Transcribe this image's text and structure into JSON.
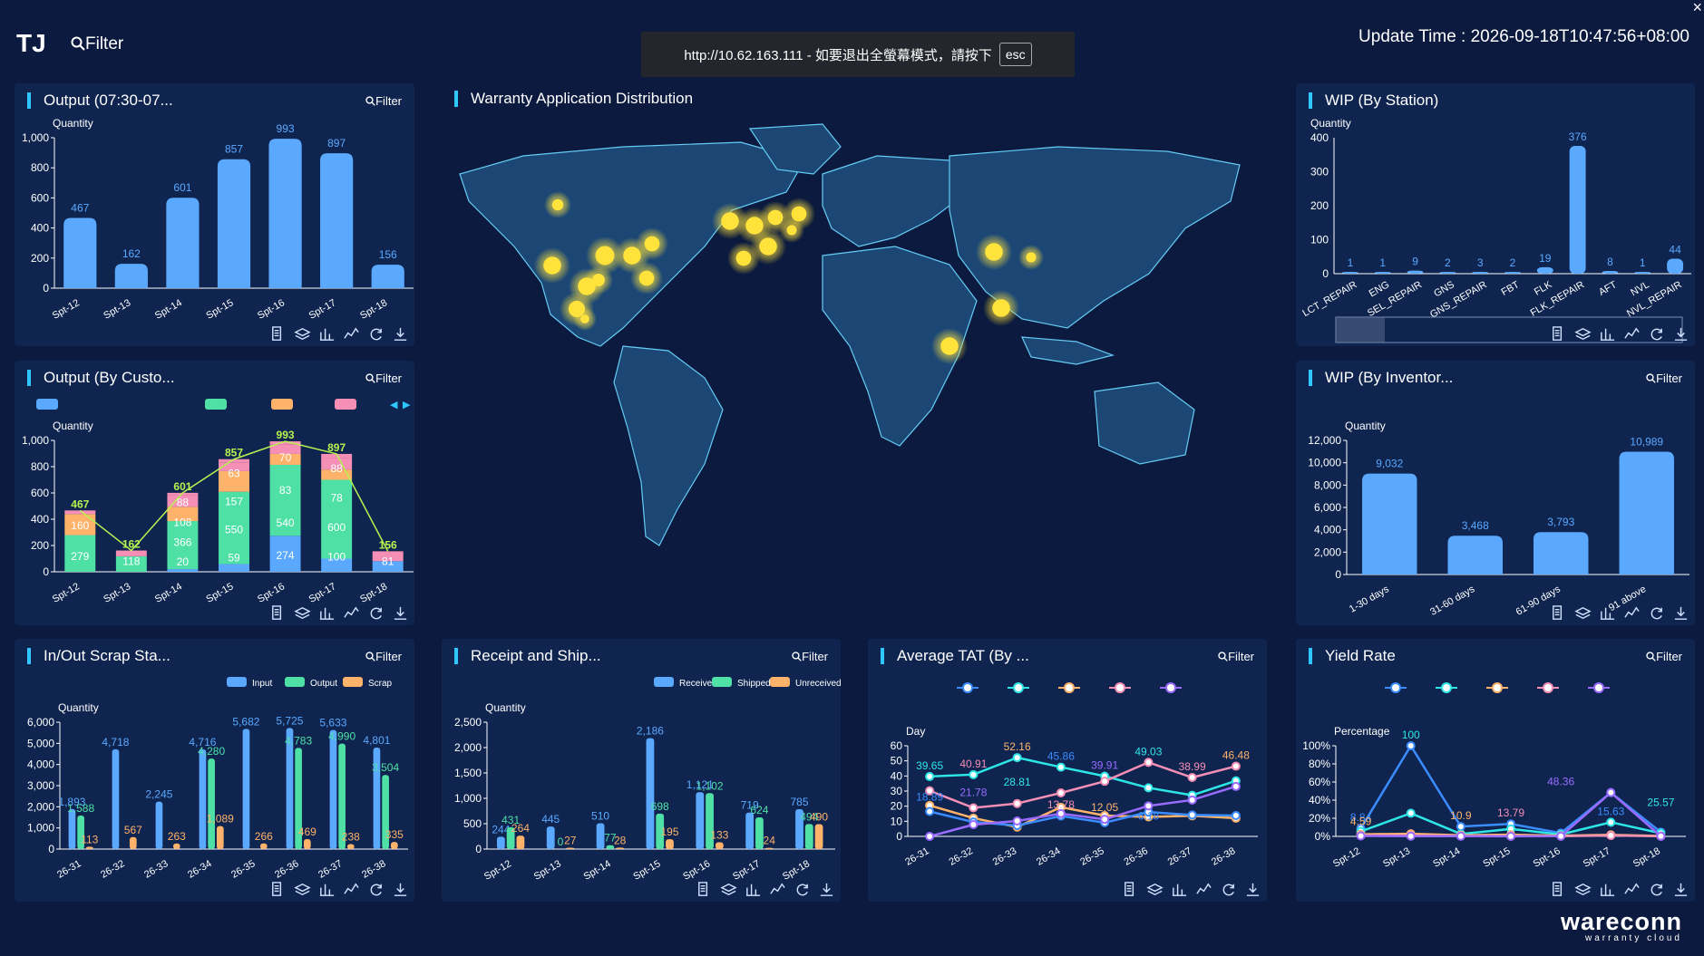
{
  "header": {
    "brand": "TJ",
    "filter_label": "Filter",
    "banner_text": "http://10.62.163.111 - 如要退出全螢幕模式，請按下",
    "banner_key": "esc",
    "update_time": "Update Time : 2026-09-18T10:47:56+08:00",
    "close_glyph": "×"
  },
  "filter_label": "Filter",
  "panels": {
    "output": {
      "title": "Output (07:30-07...",
      "ylabel": "Quantity"
    },
    "output_cust": {
      "title": "Output (By Custo...",
      "ylabel": "Quantity"
    },
    "scrap": {
      "title": "In/Out Scrap Sta...",
      "ylabel": "Quantity"
    },
    "receipt": {
      "title": "Receipt and Ship...",
      "ylabel": "Quantity"
    },
    "tat": {
      "title": "Average TAT (By ...",
      "ylabel": "Day"
    },
    "yield": {
      "title": "Yield Rate",
      "ylabel": "Percentage"
    },
    "wip_station": {
      "title": "WIP (By Station)",
      "ylabel": "Quantity"
    },
    "wip_inv": {
      "title": "WIP (By Inventor...",
      "ylabel": "Quantity"
    },
    "map": {
      "title": "Warranty Application Distribution"
    }
  },
  "tool_icons": [
    "data-view-icon",
    "layer-icon",
    "bar-chart-icon",
    "line-chart-icon",
    "refresh-icon",
    "download-icon"
  ],
  "colors": {
    "bg": "#0b1a3e",
    "panel": "#0f2550",
    "accent": "#2ec8ff",
    "bar": "#5aa9ff",
    "green": "#4fe0a6",
    "orange": "#ffb36a",
    "pink": "#f58fb5",
    "lime": "#b6f24f",
    "yellow": "#ffe23a"
  },
  "logo": {
    "l1": "wareconn",
    "l2": "warranty cloud"
  },
  "chart_data": [
    {
      "id": "output",
      "type": "bar",
      "categories": [
        "Spt-12",
        "Spt-13",
        "Spt-14",
        "Spt-15",
        "Spt-16",
        "Spt-17",
        "Spt-18"
      ],
      "values": [
        467,
        162,
        601,
        857,
        993,
        897,
        156
      ],
      "yticks": [
        "0",
        "200",
        "400",
        "600",
        "800",
        "1,000"
      ],
      "ylim": [
        0,
        1000
      ]
    },
    {
      "id": "output_cust",
      "type": "bar",
      "categories": [
        "Spt-12",
        "Spt-13",
        "Spt-14",
        "Spt-15",
        "Spt-16",
        "Spt-17",
        "Spt-18"
      ],
      "totals": [
        467,
        162,
        601,
        857,
        993,
        897,
        156
      ],
      "yticks": [
        "0",
        "200",
        "400",
        "600",
        "800",
        "1,000"
      ],
      "ylim": [
        0,
        1000
      ],
      "series": [
        {
          "values": [
            0,
            0,
            20,
            59,
            274,
            100,
            81
          ]
        },
        {
          "values": [
            279,
            118,
            366,
            550,
            540,
            600,
            0
          ]
        },
        {
          "values": [
            160,
            0,
            108,
            157,
            83,
            78,
            0
          ]
        },
        {
          "values": [
            0,
            0,
            88,
            63,
            70,
            88,
            0
          ]
        }
      ],
      "inside_labels": [
        [
          "279",
          "160",
          "467"
        ],
        [
          "118",
          "162"
        ],
        [
          "20",
          "366",
          "108",
          "88",
          "601"
        ],
        [
          "59",
          "550",
          "157",
          "63",
          "857"
        ],
        [
          "274",
          "540",
          "83",
          "70",
          "993"
        ],
        [
          "100",
          "600",
          "78",
          "88",
          "897"
        ],
        [
          "81",
          "156"
        ]
      ]
    },
    {
      "id": "scrap",
      "type": "bar",
      "categories": [
        "26-31",
        "26-32",
        "26-33",
        "26-34",
        "26-35",
        "26-36",
        "26-37",
        "26-38"
      ],
      "series": [
        {
          "name": "Input",
          "values": [
            1893,
            4718,
            2245,
            4716,
            5682,
            5725,
            5633,
            4801
          ]
        },
        {
          "name": "Output",
          "values": [
            1588,
            0,
            0,
            4280,
            0,
            4783,
            4990,
            3504
          ]
        },
        {
          "name": "Scrap",
          "values": [
            113,
            567,
            263,
            1089,
            266,
            469,
            238,
            335
          ]
        }
      ],
      "yticks": [
        "0",
        "1,000",
        "2,000",
        "3,000",
        "4,000",
        "5,000",
        "6,000"
      ],
      "ylim": [
        0,
        6000
      ],
      "labels": [
        [
          "1,893",
          "1,588",
          "113"
        ],
        [
          "4,718",
          "",
          "567"
        ],
        [
          "2,245",
          "",
          "263"
        ],
        [
          "4,716",
          "4,280",
          "1,089"
        ],
        [
          "5,682",
          "",
          "266"
        ],
        [
          "5,725",
          "4,783",
          "469"
        ],
        [
          "5,633",
          "4,990",
          "238"
        ],
        [
          "4,801",
          "3,504",
          "335"
        ]
      ]
    },
    {
      "id": "receipt",
      "type": "bar",
      "categories": [
        "Spt-12",
        "Spt-13",
        "Spt-14",
        "Spt-15",
        "Spt-16",
        "Spt-17",
        "Spt-18"
      ],
      "series": [
        {
          "name": "Received",
          "values": [
            244,
            445,
            510,
            2186,
            1121,
            719,
            785
          ]
        },
        {
          "name": "Shipped",
          "values": [
            431,
            0,
            77,
            698,
            1102,
            624,
            494
          ]
        },
        {
          "name": "Unreceived",
          "values": [
            264,
            27,
            28,
            195,
            133,
            24,
            490
          ]
        }
      ],
      "yticks": [
        "0",
        "500",
        "1,000",
        "1,500",
        "2,000",
        "2,500"
      ],
      "ylim": [
        0,
        2500
      ],
      "labels": [
        [
          "244",
          "431",
          "264"
        ],
        [
          "445",
          "0",
          "27"
        ],
        [
          "510",
          "77",
          "28"
        ],
        [
          "2,186",
          "698",
          "195"
        ],
        [
          "1,121",
          "1,102",
          "133"
        ],
        [
          "719",
          "624",
          "24"
        ],
        [
          "785",
          "494",
          "490"
        ]
      ]
    },
    {
      "id": "tat",
      "type": "line",
      "categories": [
        "26-31",
        "26-32",
        "26-33",
        "26-34",
        "26-35",
        "26-36",
        "26-37",
        "26-38"
      ],
      "yticks": [
        "0",
        "10",
        "20",
        "30",
        "40",
        "50",
        "60"
      ],
      "ylim": [
        0,
        60
      ],
      "series": [
        {
          "color": "#2ee6e6",
          "values": [
            39.65,
            40.91,
            52.16,
            45.86,
            39.91,
            32.16,
            27.23,
            36.8
          ]
        },
        {
          "color": "#f58fb5",
          "values": [
            30.2,
            18.89,
            21.78,
            28.81,
            36.5,
            49.03,
            38.99,
            46.48
          ]
        },
        {
          "color": "#ffb36a",
          "values": [
            20.5,
            12.1,
            6.18,
            19.3,
            13.78,
            12.9,
            13.63,
            12.05
          ]
        },
        {
          "color": "#3b8cff",
          "values": [
            16.5,
            9.5,
            7.2,
            13.5,
            9.1,
            16.1,
            14.2,
            13.8
          ]
        },
        {
          "color": "#9a6bff",
          "values": [
            0,
            7.8,
            10.2,
            15.1,
            11.3,
            20.2,
            24.1,
            33.1
          ]
        }
      ],
      "labels": [
        "39.65",
        "40.91",
        "52.16",
        "45.86",
        "39.91",
        "49.03",
        "38.99",
        "46.48",
        "18.89",
        "21.78",
        "28.81",
        "13.78",
        "12.05",
        "6.18"
      ]
    },
    {
      "id": "yield",
      "type": "line",
      "categories": [
        "Spt-12",
        "Spt-13",
        "Spt-14",
        "Spt-15",
        "Spt-16",
        "Spt-17",
        "Spt-18"
      ],
      "yticks": [
        "0%",
        "20%",
        "40%",
        "60%",
        "80%",
        "100%"
      ],
      "ylim": [
        0,
        100
      ],
      "series": [
        {
          "color": "#3b8cff",
          "values": [
            8.84,
            100,
            10.9,
            13.79,
            3.66,
            48.36,
            4.59
          ]
        },
        {
          "color": "#2ee6e6",
          "values": [
            5.5,
            25.57,
            2.66,
            8.2,
            2.1,
            15.63,
            3.5
          ]
        },
        {
          "color": "#ffb36a",
          "values": [
            2.3,
            2.9,
            1.2,
            1.9,
            0.8,
            1.7,
            0.5
          ]
        },
        {
          "color": "#f58fb5",
          "values": [
            1.1,
            0.9,
            0.4,
            0.2,
            0.3,
            1.0,
            0.1
          ]
        },
        {
          "color": "#9a6bff",
          "values": [
            0.5,
            0.3,
            0.2,
            0.1,
            0.2,
            48.36,
            0.2
          ]
        }
      ],
      "labels": [
        "8.84",
        "100",
        "10.9",
        "13.79",
        "48.36",
        "15.63",
        "25.57",
        "4.59"
      ]
    },
    {
      "id": "wip_station",
      "type": "bar",
      "categories": [
        "LCT_REPAIR",
        "ENG",
        "SEL_REPAIR",
        "GNS",
        "GNS_REPAIR",
        "FBT",
        "FLK",
        "FLK_REPAIR",
        "AFT",
        "NVL",
        "NVL_REPAIR"
      ],
      "values": [
        1,
        1,
        9,
        2,
        3,
        2,
        19,
        376,
        8,
        1,
        44
      ],
      "yticks": [
        "0",
        "100",
        "200",
        "300",
        "400"
      ],
      "ylim": [
        0,
        400
      ]
    },
    {
      "id": "wip_inv",
      "type": "bar",
      "categories": [
        "1-30 days",
        "31-60 days",
        "61-90 days",
        "91 above"
      ],
      "values": [
        9032,
        3468,
        3793,
        10989
      ],
      "yticks": [
        "0",
        "2,000",
        "4,000",
        "6,000",
        "8,000",
        "10,000",
        "12,000"
      ],
      "ylim": [
        0,
        12000
      ]
    }
  ],
  "legends": {
    "scrap": [
      "Input",
      "Output",
      "Scrap"
    ],
    "receipt": [
      "Received",
      "Shipped",
      "Unreceived"
    ]
  }
}
